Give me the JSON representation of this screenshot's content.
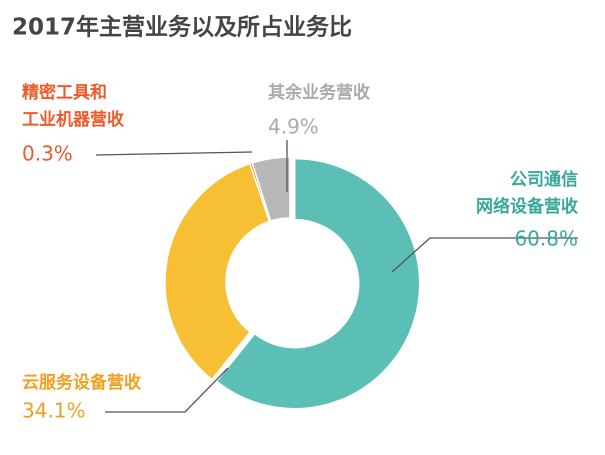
{
  "chart_data": {
    "type": "donut",
    "title": "2017年主营业务以及所占业务比",
    "categories": [
      "公司通信网络设备营收",
      "云服务设备营收",
      "精密工具和工业机器营收",
      "其余业务营收"
    ],
    "values": [
      60.8,
      34.1,
      0.3,
      4.9
    ],
    "value_labels": [
      "60.8%",
      "34.1%",
      "0.3%",
      "4.9%"
    ],
    "colors": [
      "#5bbfb5",
      "#f7c034",
      "#ef5a2a",
      "#b8b8b8"
    ]
  }
}
